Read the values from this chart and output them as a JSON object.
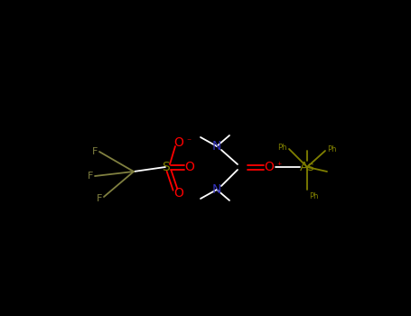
{
  "bg_color": "#000000",
  "fig_width": 4.55,
  "fig_height": 3.5,
  "dpi": 100,
  "colors": {
    "F": "#808040",
    "S": "#808000",
    "O": "#ff0000",
    "N": "#3333bb",
    "As": "#808000",
    "C": "#ffffff",
    "bond": "#ffffff"
  },
  "xlim": [
    0,
    455
  ],
  "ylim": [
    0,
    350
  ]
}
